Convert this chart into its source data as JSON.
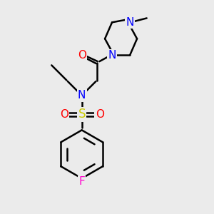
{
  "bg_color": "#ebebeb",
  "atom_colors": {
    "N": "#0000ff",
    "O": "#ff0000",
    "S": "#cccc00",
    "F": "#ff00cc",
    "C": "#000000"
  },
  "bond_color": "#000000",
  "bond_width": 1.8,
  "font_size_atom": 10
}
